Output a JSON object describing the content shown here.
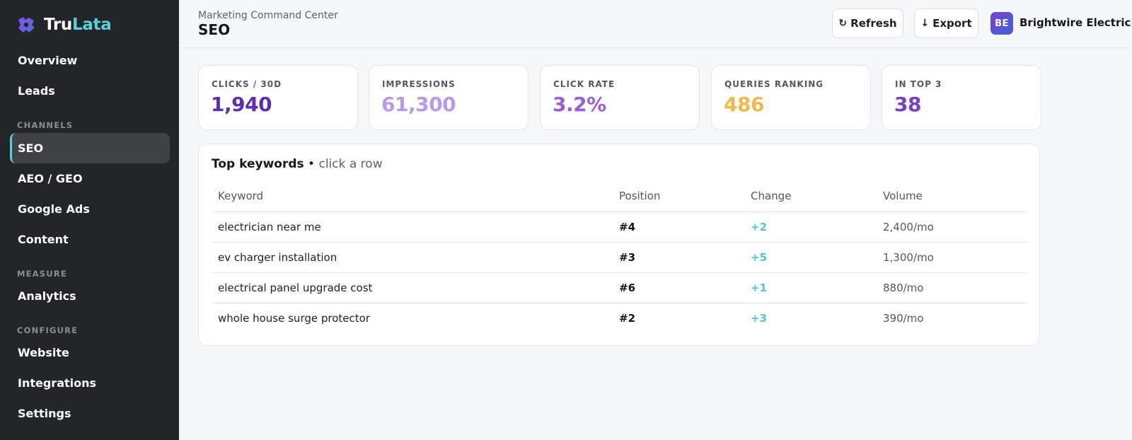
{
  "brand": {
    "name_part1": "Tru",
    "name_part2": "Lata",
    "logo_icon": "puzzle-logo-icon"
  },
  "sidebar": {
    "top_items": [
      {
        "label": "Overview"
      },
      {
        "label": "Leads"
      }
    ],
    "channels_label": "CHANNELS",
    "channels": [
      {
        "label": "SEO",
        "active": true
      },
      {
        "label": "AEO / GEO"
      },
      {
        "label": "Google Ads"
      },
      {
        "label": "Content"
      }
    ],
    "measure_label": "MEASURE",
    "measure": [
      {
        "label": "Analytics"
      }
    ],
    "configure_label": "CONFIGURE",
    "configure": [
      {
        "label": "Website"
      },
      {
        "label": "Integrations"
      },
      {
        "label": "Settings"
      }
    ]
  },
  "header": {
    "breadcrumb": "Marketing Command Center",
    "title": "SEO",
    "refresh_label": "Refresh",
    "refresh_icon": "↻",
    "export_label": "Export",
    "export_icon": "↓",
    "avatar_initials": "BE",
    "company_name": "Brightwire Electric"
  },
  "stats": [
    {
      "label": "CLICKS / 30D",
      "value": "1,940",
      "color": "#5b2fb0"
    },
    {
      "label": "IMPRESSIONS",
      "value": "61,300",
      "color": "#b79be8"
    },
    {
      "label": "CLICK RATE",
      "value": "3.2%",
      "color": "#9a5fd6"
    },
    {
      "label": "QUERIES RANKING",
      "value": "486",
      "color": "#f2b84b"
    },
    {
      "label": "IN TOP 3",
      "value": "38",
      "color": "#7a3ec0"
    }
  ],
  "keywords": {
    "title": "Top keywords",
    "separator": "•",
    "hint": "click a row",
    "columns": [
      "Keyword",
      "Position",
      "Change",
      "Volume"
    ],
    "rows": [
      {
        "keyword": "electrician near me",
        "position": "#4",
        "change": "+2",
        "volume": "2,400/mo"
      },
      {
        "keyword": "ev charger installation",
        "position": "#3",
        "change": "+5",
        "volume": "1,300/mo"
      },
      {
        "keyword": "electrical panel upgrade cost",
        "position": "#6",
        "change": "+1",
        "volume": "880/mo"
      },
      {
        "keyword": "whole house surge protector",
        "position": "#2",
        "change": "+3",
        "volume": "390/mo"
      }
    ]
  },
  "colors": {
    "accent": "#56d0dc",
    "sidebar_bg": "#242528",
    "change_positive": "#4cc6d6"
  }
}
